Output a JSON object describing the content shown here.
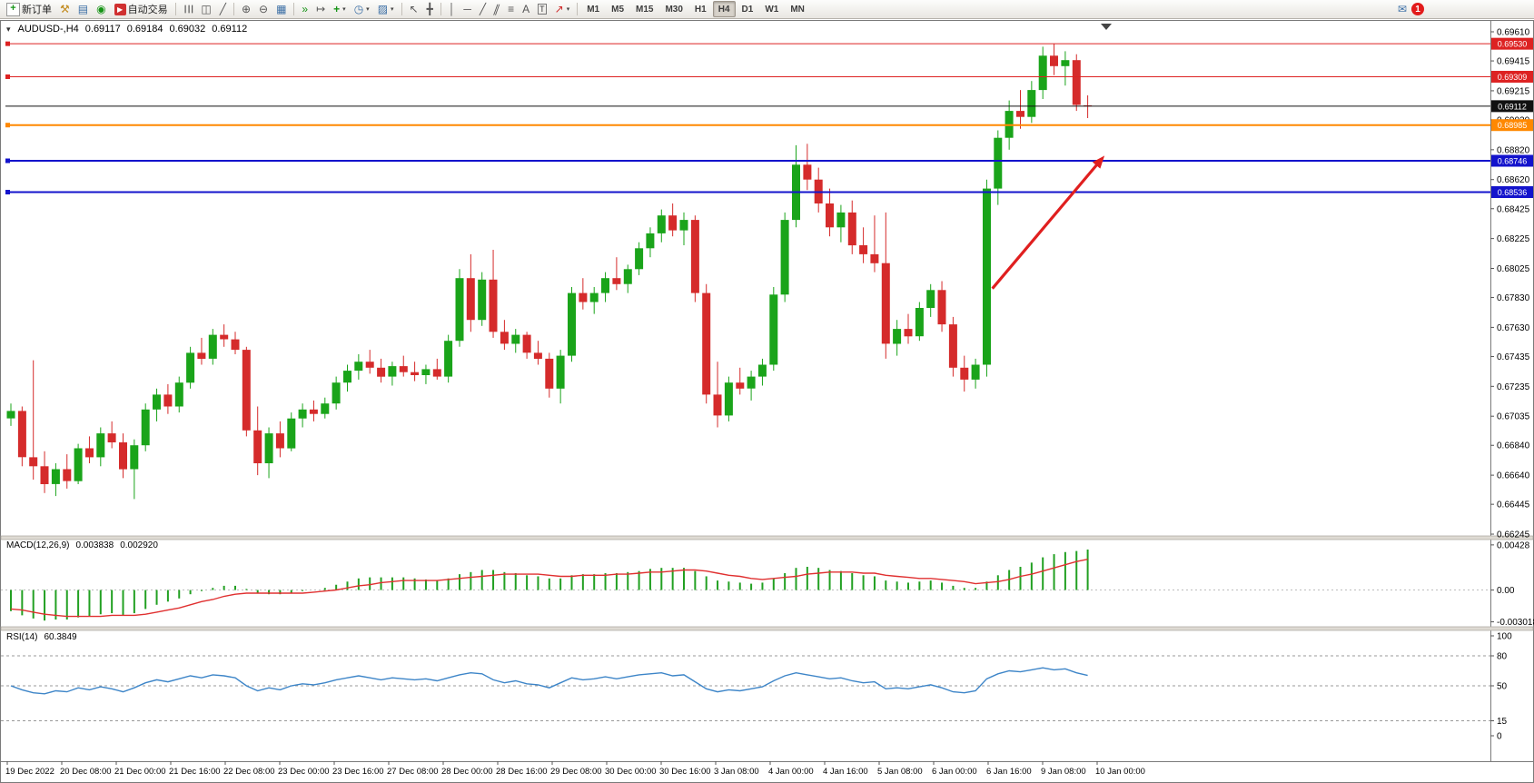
{
  "toolbar": {
    "new_order_label": "新订单",
    "auto_trading_label": "自动交易",
    "timeframes": [
      "M1",
      "M5",
      "M15",
      "M30",
      "H1",
      "H4",
      "D1",
      "W1",
      "MN"
    ],
    "active_timeframe": "H4",
    "notification_count": "1"
  },
  "icons": {
    "new_order": "+",
    "tools": "⚒",
    "market_watch": "▤",
    "data_window": "◉",
    "auto_trading": "▶",
    "bars_chart": "☰",
    "candles_chart": "◫",
    "line_chart": "╱",
    "zoom_in": "⊕",
    "zoom_out": "⊖",
    "tile_windows": "▦",
    "auto_scroll": "»",
    "chart_shift": "↦",
    "indicators": "+",
    "periods": "◷",
    "templates": "▨",
    "cursor": "↖",
    "crosshair": "╋",
    "vline": "│",
    "hline": "─",
    "trendline": "╱",
    "channel": "∥",
    "fibo": "≡",
    "text": "A",
    "label": "T",
    "shapes": "↗",
    "dropdown": "▾",
    "messages": "✉",
    "one_click": "▾"
  },
  "chart": {
    "symbol_period": "AUDUSD-,H4",
    "ohlc": {
      "open": "0.69117",
      "high": "0.69184",
      "low": "0.69032",
      "close": "0.69112"
    }
  },
  "indicators": {
    "macd": {
      "name": "MACD(12,26,9)",
      "main": "0.003838",
      "signal": "0.002920"
    },
    "rsi": {
      "name": "RSI(14)",
      "value": "60.3849"
    }
  },
  "colors": {
    "candle_up": "#1aa41a",
    "candle_down": "#d52b2b",
    "macd_bar": "#22a022",
    "macd_signal": "#e03030",
    "rsi_line": "#3d85c8",
    "arrow": "#e01f1f"
  },
  "chart_data": [
    {
      "type": "candlestick",
      "title": "AUDUSD-,H4",
      "timeframe": "H4",
      "ylim": [
        0.66233,
        0.69677
      ],
      "y_ticks": [
        "0.69610",
        "0.69415",
        "0.69215",
        "0.69020",
        "0.68820",
        "0.68620",
        "0.68425",
        "0.68225",
        "0.68025",
        "0.67830",
        "0.67630",
        "0.67435",
        "0.67235",
        "0.67035",
        "0.66840",
        "0.66640",
        "0.66445",
        "0.66245"
      ],
      "x_labels": [
        "19 Dec 2022",
        "20 Dec 08:00",
        "21 Dec 00:00",
        "21 Dec 16:00",
        "22 Dec 08:00",
        "23 Dec 00:00",
        "23 Dec 16:00",
        "27 Dec 08:00",
        "28 Dec 00:00",
        "28 Dec 16:00",
        "29 Dec 08:00",
        "30 Dec 00:00",
        "30 Dec 16:00",
        "3 Jan 08:00",
        "4 Jan 00:00",
        "4 Jan 16:00",
        "5 Jan 08:00",
        "6 Jan 00:00",
        "6 Jan 16:00",
        "9 Jan 08:00",
        "10 Jan 00:00"
      ],
      "candles": [
        [
          0.6702,
          0.6712,
          0.6697,
          0.6707
        ],
        [
          0.6707,
          0.671,
          0.667,
          0.6676
        ],
        [
          0.6676,
          0.6741,
          0.6661,
          0.667
        ],
        [
          0.667,
          0.668,
          0.6652,
          0.6658
        ],
        [
          0.6658,
          0.6672,
          0.665,
          0.6668
        ],
        [
          0.6668,
          0.6678,
          0.6655,
          0.666
        ],
        [
          0.666,
          0.6685,
          0.6658,
          0.6682
        ],
        [
          0.6682,
          0.669,
          0.6672,
          0.6676
        ],
        [
          0.6676,
          0.6696,
          0.667,
          0.6692
        ],
        [
          0.6692,
          0.67,
          0.6682,
          0.6686
        ],
        [
          0.6686,
          0.6692,
          0.6662,
          0.6668
        ],
        [
          0.6668,
          0.6688,
          0.6648,
          0.6684
        ],
        [
          0.6684,
          0.6712,
          0.668,
          0.6708
        ],
        [
          0.6708,
          0.6722,
          0.67,
          0.6718
        ],
        [
          0.6718,
          0.6725,
          0.6705,
          0.671
        ],
        [
          0.671,
          0.673,
          0.6706,
          0.6726
        ],
        [
          0.6726,
          0.675,
          0.6722,
          0.6746
        ],
        [
          0.6746,
          0.6756,
          0.6738,
          0.6742
        ],
        [
          0.6742,
          0.6762,
          0.6738,
          0.6758
        ],
        [
          0.6758,
          0.6765,
          0.675,
          0.6755
        ],
        [
          0.6755,
          0.676,
          0.6745,
          0.6748
        ],
        [
          0.6748,
          0.675,
          0.669,
          0.6694
        ],
        [
          0.6694,
          0.671,
          0.6664,
          0.6672
        ],
        [
          0.6672,
          0.6696,
          0.6662,
          0.6692
        ],
        [
          0.6692,
          0.67,
          0.6676,
          0.6682
        ],
        [
          0.6682,
          0.6706,
          0.668,
          0.6702
        ],
        [
          0.6702,
          0.6712,
          0.6696,
          0.6708
        ],
        [
          0.6708,
          0.6714,
          0.67,
          0.6705
        ],
        [
          0.6705,
          0.6716,
          0.6702,
          0.6712
        ],
        [
          0.6712,
          0.673,
          0.6708,
          0.6726
        ],
        [
          0.6726,
          0.6738,
          0.672,
          0.6734
        ],
        [
          0.6734,
          0.6745,
          0.6728,
          0.674
        ],
        [
          0.674,
          0.6748,
          0.6732,
          0.6736
        ],
        [
          0.6736,
          0.6742,
          0.6726,
          0.673
        ],
        [
          0.673,
          0.674,
          0.6724,
          0.6737
        ],
        [
          0.6737,
          0.6744,
          0.673,
          0.6733
        ],
        [
          0.6733,
          0.674,
          0.6727,
          0.6731
        ],
        [
          0.6731,
          0.6738,
          0.6725,
          0.6735
        ],
        [
          0.6735,
          0.6742,
          0.6728,
          0.673
        ],
        [
          0.673,
          0.6758,
          0.6726,
          0.6754
        ],
        [
          0.6754,
          0.6802,
          0.675,
          0.6796
        ],
        [
          0.6796,
          0.6812,
          0.676,
          0.6768
        ],
        [
          0.6768,
          0.68,
          0.6764,
          0.6795
        ],
        [
          0.6795,
          0.6815,
          0.6756,
          0.676
        ],
        [
          0.676,
          0.6768,
          0.6748,
          0.6752
        ],
        [
          0.6752,
          0.6762,
          0.6746,
          0.6758
        ],
        [
          0.6758,
          0.676,
          0.6742,
          0.6746
        ],
        [
          0.6746,
          0.6754,
          0.6738,
          0.6742
        ],
        [
          0.6742,
          0.6746,
          0.6716,
          0.6722
        ],
        [
          0.6722,
          0.6748,
          0.6712,
          0.6744
        ],
        [
          0.6744,
          0.679,
          0.674,
          0.6786
        ],
        [
          0.6786,
          0.6796,
          0.6775,
          0.678
        ],
        [
          0.678,
          0.679,
          0.6772,
          0.6786
        ],
        [
          0.6786,
          0.68,
          0.678,
          0.6796
        ],
        [
          0.6796,
          0.681,
          0.6788,
          0.6792
        ],
        [
          0.6792,
          0.6805,
          0.6786,
          0.6802
        ],
        [
          0.6802,
          0.682,
          0.6798,
          0.6816
        ],
        [
          0.6816,
          0.683,
          0.681,
          0.6826
        ],
        [
          0.6826,
          0.6842,
          0.682,
          0.6838
        ],
        [
          0.6838,
          0.6846,
          0.6824,
          0.6828
        ],
        [
          0.6828,
          0.684,
          0.6818,
          0.6835
        ],
        [
          0.6835,
          0.6838,
          0.678,
          0.6786
        ],
        [
          0.6786,
          0.6792,
          0.6712,
          0.6718
        ],
        [
          0.6718,
          0.674,
          0.6696,
          0.6704
        ],
        [
          0.6704,
          0.673,
          0.67,
          0.6726
        ],
        [
          0.6726,
          0.6736,
          0.6718,
          0.6722
        ],
        [
          0.6722,
          0.6734,
          0.6714,
          0.673
        ],
        [
          0.673,
          0.6742,
          0.6724,
          0.6738
        ],
        [
          0.6738,
          0.679,
          0.6734,
          0.6785
        ],
        [
          0.6785,
          0.684,
          0.678,
          0.6835
        ],
        [
          0.6835,
          0.6885,
          0.683,
          0.6872
        ],
        [
          0.6872,
          0.6886,
          0.6855,
          0.6862
        ],
        [
          0.6862,
          0.687,
          0.684,
          0.6846
        ],
        [
          0.6846,
          0.6856,
          0.6824,
          0.683
        ],
        [
          0.683,
          0.6845,
          0.682,
          0.684
        ],
        [
          0.684,
          0.6848,
          0.6812,
          0.6818
        ],
        [
          0.6818,
          0.683,
          0.6806,
          0.6812
        ],
        [
          0.6812,
          0.6838,
          0.68,
          0.6806
        ],
        [
          0.6806,
          0.684,
          0.6742,
          0.6752
        ],
        [
          0.6752,
          0.6768,
          0.6744,
          0.6762
        ],
        [
          0.6762,
          0.6772,
          0.6752,
          0.6757
        ],
        [
          0.6757,
          0.678,
          0.6754,
          0.6776
        ],
        [
          0.6776,
          0.6792,
          0.677,
          0.6788
        ],
        [
          0.6788,
          0.6794,
          0.676,
          0.6765
        ],
        [
          0.6765,
          0.677,
          0.673,
          0.6736
        ],
        [
          0.6736,
          0.6744,
          0.672,
          0.6728
        ],
        [
          0.6728,
          0.6742,
          0.6722,
          0.6738
        ],
        [
          0.6738,
          0.6862,
          0.673,
          0.6856
        ],
        [
          0.6856,
          0.6895,
          0.6845,
          0.689
        ],
        [
          0.689,
          0.6915,
          0.6882,
          0.6908
        ],
        [
          0.6908,
          0.6922,
          0.6896,
          0.6904
        ],
        [
          0.6904,
          0.6928,
          0.69,
          0.6922
        ],
        [
          0.6922,
          0.6951,
          0.6916,
          0.6945
        ],
        [
          0.6945,
          0.6953,
          0.6932,
          0.6938
        ],
        [
          0.6938,
          0.6948,
          0.6925,
          0.6942
        ],
        [
          0.6942,
          0.6946,
          0.6908,
          0.6912
        ],
        [
          0.69117,
          0.69184,
          0.69032,
          0.69112
        ]
      ],
      "hlines": [
        {
          "price": 0.6953,
          "label": "0.69530",
          "color": "#dd2222",
          "width": 1,
          "handle": true
        },
        {
          "price": 0.69309,
          "label": "0.69309",
          "color": "#dd2222",
          "width": 1,
          "handle": true
        },
        {
          "price": 0.69112,
          "label": "0.69112",
          "color": "#111111",
          "width": 1,
          "handle": false
        },
        {
          "price": 0.68985,
          "label": "0.68985",
          "color": "#ff8800",
          "width": 2,
          "handle": true
        },
        {
          "price": 0.68746,
          "label": "0.68746",
          "color": "#1313cc",
          "width": 2,
          "handle": true
        },
        {
          "price": 0.68536,
          "label": "0.68536",
          "color": "#1313cc",
          "width": 2,
          "handle": true
        }
      ],
      "trend_arrow": {
        "i1": 87.5,
        "p1": 0.6789,
        "i2": 97.5,
        "p2": 0.6878
      }
    },
    {
      "type": "bar",
      "title": "MACD(12,26,9)",
      "unit": 0.0001,
      "ylim": [
        -0.0034,
        0.0047
      ],
      "y_ticks": [
        "0.00428",
        "0.00",
        "-0.003018"
      ],
      "values_units": [
        -20,
        -24,
        -27,
        -29,
        -28,
        -28,
        -26,
        -25,
        -23,
        -22,
        -24,
        -22,
        -18,
        -14,
        -11,
        -8,
        -4,
        -1,
        2,
        4,
        4,
        1,
        -3,
        -4,
        -4,
        -3,
        -1,
        0,
        2,
        5,
        8,
        11,
        12,
        12,
        12,
        12,
        11,
        10,
        9,
        11,
        15,
        17,
        19,
        19,
        17,
        16,
        14,
        13,
        11,
        11,
        14,
        15,
        15,
        16,
        16,
        17,
        18,
        20,
        21,
        21,
        21,
        18,
        13,
        9,
        8,
        7,
        6,
        7,
        11,
        16,
        21,
        22,
        21,
        19,
        18,
        16,
        14,
        13,
        9,
        8,
        7,
        8,
        9,
        7,
        4,
        2,
        2,
        8,
        14,
        19,
        22,
        26,
        31,
        34,
        36,
        37,
        38.4
      ],
      "signal_units": [
        -18,
        -19,
        -21,
        -23,
        -24,
        -25,
        -25,
        -25,
        -25,
        -24,
        -24,
        -24,
        -23,
        -21,
        -19,
        -17,
        -14,
        -11,
        -9,
        -6,
        -4,
        -3,
        -3,
        -3,
        -3,
        -3,
        -3,
        -2,
        -1,
        0,
        2,
        4,
        5,
        7,
        8,
        9,
        9,
        9,
        9,
        10,
        11,
        12,
        13,
        14,
        15,
        15,
        15,
        15,
        14,
        13,
        13,
        14,
        14,
        14,
        15,
        15,
        16,
        17,
        17,
        18,
        19,
        19,
        18,
        16,
        14,
        13,
        11,
        10,
        11,
        12,
        13,
        15,
        16,
        17,
        17,
        17,
        16,
        16,
        14,
        13,
        12,
        11,
        11,
        10,
        9,
        8,
        6,
        7,
        8,
        10,
        13,
        15,
        18,
        21,
        24,
        27,
        29.2
      ]
    },
    {
      "type": "line",
      "title": "RSI(14)",
      "ylim": [
        0,
        100
      ],
      "levels": [
        80,
        50,
        15
      ],
      "y_ticks": [
        "100",
        "80",
        "50",
        "15",
        "0"
      ],
      "values": [
        50,
        46,
        43,
        42,
        45,
        44,
        48,
        46,
        49,
        47,
        44,
        48,
        53,
        56,
        54,
        57,
        60,
        58,
        61,
        60,
        58,
        50,
        45,
        48,
        46,
        50,
        52,
        51,
        53,
        56,
        58,
        60,
        58,
        56,
        58,
        57,
        56,
        57,
        55,
        58,
        61,
        63,
        62,
        56,
        53,
        55,
        52,
        51,
        48,
        53,
        58,
        56,
        57,
        59,
        57,
        59,
        61,
        62,
        63,
        60,
        61,
        54,
        47,
        44,
        46,
        45,
        47,
        49,
        55,
        60,
        63,
        61,
        59,
        57,
        58,
        55,
        53,
        54,
        47,
        48,
        47,
        49,
        51,
        48,
        44,
        43,
        45,
        57,
        62,
        65,
        64,
        66,
        68,
        66,
        67,
        63,
        60.4
      ]
    }
  ]
}
